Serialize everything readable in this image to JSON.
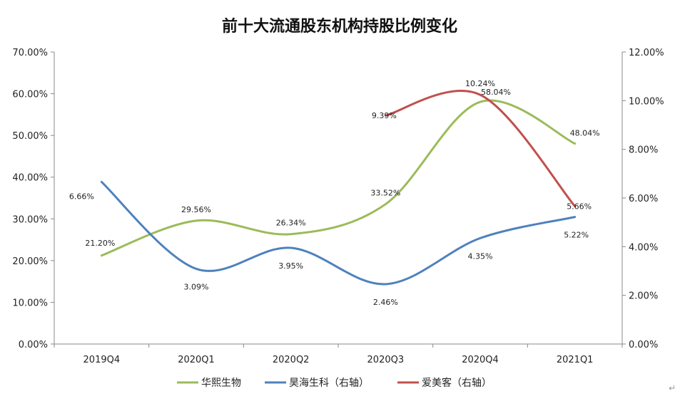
{
  "chart_data": {
    "type": "line",
    "title": "前十大流通股东机构持股比例变化",
    "xlabel": "",
    "ylabel": "",
    "categories": [
      "2019Q4",
      "2020Q1",
      "2020Q2",
      "2020Q3",
      "2020Q4",
      "2021Q1"
    ],
    "ylim_left": [
      0,
      70
    ],
    "ylim_right": [
      0,
      12
    ],
    "y_ticks_left": [
      "0.00%",
      "10.00%",
      "20.00%",
      "30.00%",
      "40.00%",
      "50.00%",
      "60.00%",
      "70.00%"
    ],
    "y_ticks_right": [
      "0.00%",
      "2.00%",
      "4.00%",
      "6.00%",
      "8.00%",
      "10.00%",
      "12.00%"
    ],
    "grid": false,
    "legend_position": "bottom",
    "series": [
      {
        "name": "华熙生物",
        "axis": "left",
        "color": "#9BBB59",
        "values": [
          21.2,
          29.56,
          26.34,
          33.52,
          58.04,
          48.04
        ],
        "labels": [
          "21.20%",
          "29.56%",
          "26.34%",
          "33.52%",
          "58.04%",
          "48.04%"
        ]
      },
      {
        "name": "昊海生科（右轴）",
        "axis": "right",
        "color": "#4F81BD",
        "values": [
          6.66,
          3.09,
          3.95,
          2.46,
          4.35,
          5.22
        ],
        "labels": [
          "6.66%",
          "3.09%",
          "3.95%",
          "2.46%",
          "4.35%",
          "5.22%"
        ]
      },
      {
        "name": "爱美客（右轴）",
        "axis": "right",
        "color": "#C0504D",
        "values": [
          null,
          null,
          null,
          9.39,
          10.24,
          5.66
        ],
        "labels": [
          "",
          "",
          "",
          "9.39%",
          "10.24%",
          "5.66%"
        ]
      }
    ]
  },
  "corner_mark": "↵"
}
